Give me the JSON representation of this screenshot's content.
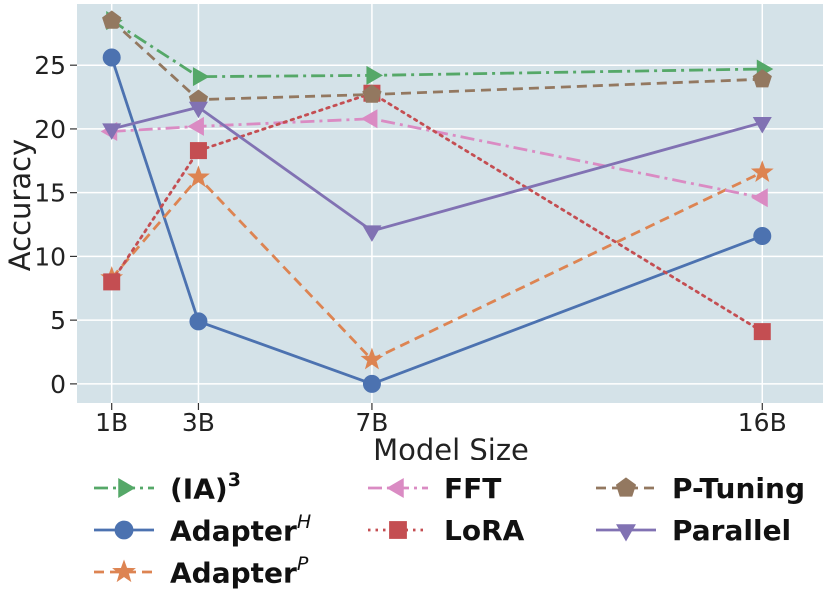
{
  "chart_data": {
    "type": "line",
    "title": "",
    "xlabel": "Model Size",
    "ylabel": "Accuracy",
    "x": [
      1,
      3,
      7,
      16
    ],
    "x_tick_labels": [
      "1B",
      "3B",
      "7B",
      "16B"
    ],
    "xlim": [
      0.2,
      17.4
    ],
    "ylim": [
      -1.5,
      29.8
    ],
    "y_ticks": [
      0,
      5,
      10,
      15,
      20,
      25
    ],
    "grid": true,
    "background": "#d4e2e8",
    "legend_position": "bottom",
    "series": [
      {
        "key": "ia3",
        "name": "(IA)",
        "sup": "3",
        "color": "#55a868",
        "dash": "dashdot",
        "marker": "triangle-right",
        "values": [
          28.5,
          24.1,
          24.2,
          24.7
        ]
      },
      {
        "key": "adapter_h",
        "name": "Adapter",
        "sup": "H",
        "color": "#4c72b0",
        "dash": "solid",
        "marker": "circle",
        "values": [
          25.6,
          4.9,
          0.0,
          11.6
        ]
      },
      {
        "key": "adapter_p",
        "name": "Adapter",
        "sup": "P",
        "color": "#dd8452",
        "dash": "dashed",
        "marker": "star",
        "values": [
          8.3,
          16.2,
          1.9,
          16.6
        ]
      },
      {
        "key": "fft",
        "name": "FFT",
        "sup": "",
        "color": "#da8bc3",
        "dash": "dashdot",
        "marker": "triangle-left",
        "values": [
          19.8,
          20.2,
          20.8,
          14.6
        ]
      },
      {
        "key": "lora",
        "name": "LoRA",
        "sup": "",
        "color": "#c44e52",
        "dash": "dotted",
        "marker": "square",
        "values": [
          8.0,
          18.3,
          22.8,
          4.1
        ]
      },
      {
        "key": "ptuning",
        "name": "P-Tuning",
        "sup": "",
        "color": "#937860",
        "dash": "dashed",
        "marker": "pentagon",
        "values": [
          28.5,
          22.3,
          22.7,
          23.9
        ]
      },
      {
        "key": "parallel",
        "name": "Parallel",
        "sup": "",
        "color": "#8172b3",
        "dash": "solid",
        "marker": "triangle-down",
        "values": [
          20.0,
          21.7,
          12.0,
          20.5
        ]
      }
    ]
  }
}
